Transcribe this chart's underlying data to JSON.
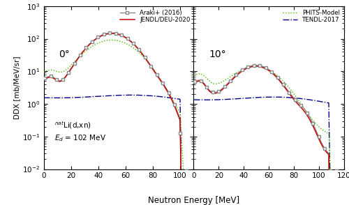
{
  "xlabel": "Neutron Energy [MeV]",
  "ylabel": "DDX [mb/MeV/sr]",
  "angle_left": "0°",
  "angle_right": "10°",
  "ylim": [
    0.01,
    1000
  ],
  "xlim_left": [
    0,
    110
  ],
  "xlim_right": [
    0,
    120
  ],
  "colors": {
    "araki": "#888888",
    "jendl": "#cc0000",
    "phits": "#44bb00",
    "tendl": "#000088"
  },
  "xticks_left": [
    0,
    20,
    40,
    60,
    80,
    100
  ],
  "xticks_right": [
    0,
    20,
    40,
    60,
    80,
    100,
    120
  ]
}
